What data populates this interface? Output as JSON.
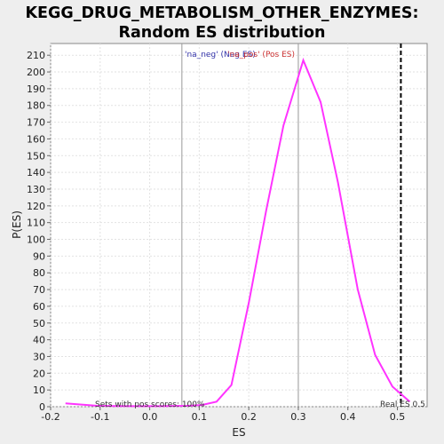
{
  "chart_data": {
    "type": "line",
    "title_line1": "KEGG_DRUG_METABOLISM_OTHER_ENZYMES:",
    "title_line2": "Random ES distribution",
    "xlabel": "ES",
    "ylabel": "P(ES)",
    "xlim": [
      -0.2,
      0.56
    ],
    "ylim": [
      0,
      217
    ],
    "xticks": [
      -0.2,
      -0.1,
      0.0,
      0.1,
      0.2,
      0.3,
      0.4,
      0.5
    ],
    "xtick_labels": [
      "-0.2",
      "-0.1",
      "0.0",
      "0.1",
      "0.2",
      "0.3",
      "0.4",
      "0.5"
    ],
    "yticks": [
      0,
      10,
      20,
      30,
      40,
      50,
      60,
      70,
      80,
      90,
      100,
      110,
      120,
      130,
      140,
      150,
      160,
      170,
      180,
      190,
      200,
      210
    ],
    "grid": true,
    "series": [
      {
        "color": "#ff33ff",
        "x": [
          -0.17,
          -0.105,
          -0.04,
          0.02,
          0.075,
          0.105,
          0.135,
          0.165,
          0.2,
          0.235,
          0.27,
          0.31,
          0.345,
          0.38,
          0.42,
          0.455,
          0.49,
          0.525
        ],
        "y": [
          2,
          0.5,
          0.3,
          0.3,
          0.5,
          1,
          3,
          13,
          62,
          117,
          168,
          207,
          182,
          134,
          70,
          31,
          12,
          3
        ]
      }
    ],
    "vlines": [
      {
        "x": 0.065,
        "color": "#999999",
        "style": "solid"
      },
      {
        "x": 0.3,
        "color": "#999999",
        "style": "solid"
      },
      {
        "x": 0.507,
        "color": "#000000",
        "style": "dashed"
      }
    ],
    "annotations": {
      "neg_label": "'na_neg' (Neg ES)",
      "neg_color": "#3333aa",
      "pos_label": "'na_pos' (Pos ES)",
      "pos_color": "#cc3333",
      "sets_text": "Sets with pos scores: 100%",
      "real_es_text": "Real ES 0.5"
    }
  }
}
